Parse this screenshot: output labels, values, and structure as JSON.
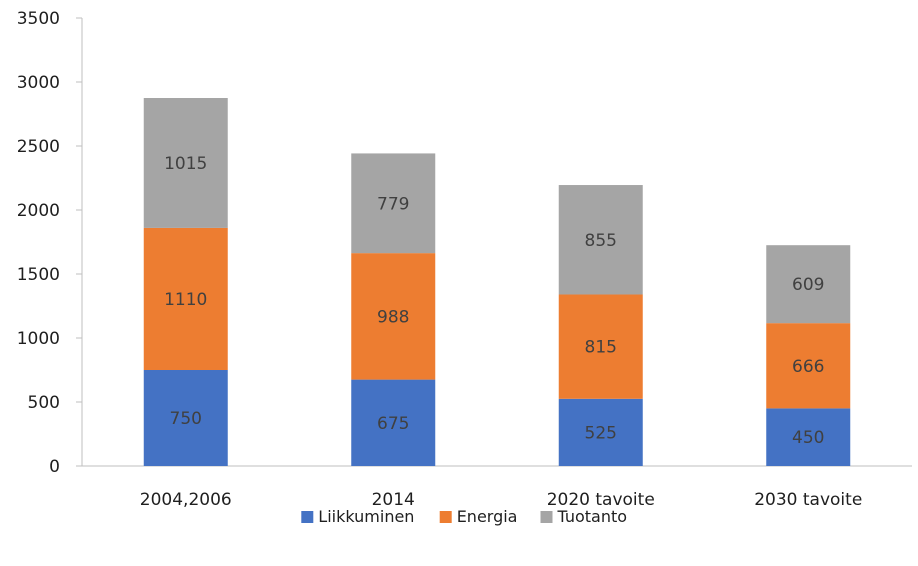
{
  "chart_data": {
    "type": "bar",
    "stacked": true,
    "categories": [
      "2004,2006",
      "2014",
      "2020 tavoite",
      "2030 tavoite"
    ],
    "series": [
      {
        "name": "Liikkuminen",
        "color": "#4472C4",
        "values": [
          750,
          675,
          525,
          450
        ]
      },
      {
        "name": "Energia",
        "color": "#ED7D31",
        "values": [
          1110,
          988,
          815,
          666
        ]
      },
      {
        "name": "Tuotanto",
        "color": "#A5A5A5",
        "values": [
          1015,
          779,
          855,
          609
        ]
      }
    ],
    "ylim": [
      0,
      3500
    ],
    "yticks": [
      "0",
      "500",
      "1000",
      "1500",
      "2000",
      "2500",
      "3000",
      "3500"
    ],
    "grid": false,
    "legend_position": "bottom",
    "title": "",
    "xlabel": "",
    "ylabel": ""
  }
}
